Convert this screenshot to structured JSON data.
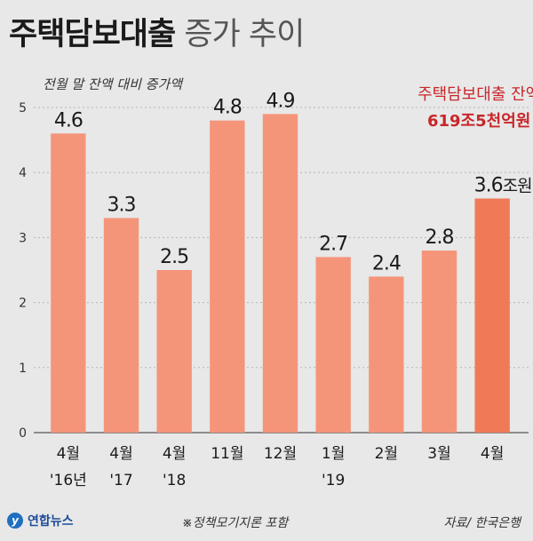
{
  "title": {
    "main": "주택담보대출",
    "sub": "증가 추이"
  },
  "footer": {
    "logo": "연합뉴스",
    "note": "※정책모기지론 포함",
    "source": "자료/ 한국은행"
  },
  "colors": {
    "bar": "#f4957a",
    "bar_last": "#f07a58",
    "annotation": "#c8262a"
  },
  "chart_data": {
    "type": "bar",
    "ylabel": "전월 말 잔액 대비 증가액",
    "ylim": [
      0,
      5
    ],
    "yticks": [
      "0",
      "1",
      "2",
      "3",
      "4",
      "5"
    ],
    "categories": [
      [
        "4월",
        "'16년"
      ],
      [
        "4월",
        "'17"
      ],
      [
        "4월",
        "'18"
      ],
      [
        "11월"
      ],
      [
        "12월"
      ],
      [
        "1월",
        "'19"
      ],
      [
        "2월"
      ],
      [
        "3월"
      ],
      [
        "4월"
      ]
    ],
    "values": [
      4.6,
      3.3,
      2.5,
      4.8,
      4.9,
      2.7,
      2.4,
      2.8,
      3.6
    ],
    "value_labels": [
      "4.6",
      "3.3",
      "2.5",
      "4.8",
      "4.9",
      "2.7",
      "2.4",
      "2.8",
      "3.6"
    ],
    "last_value_unit": "조원",
    "annotation": {
      "line1": "주택담보대출 잔액",
      "line2": "619조5천억원"
    }
  }
}
